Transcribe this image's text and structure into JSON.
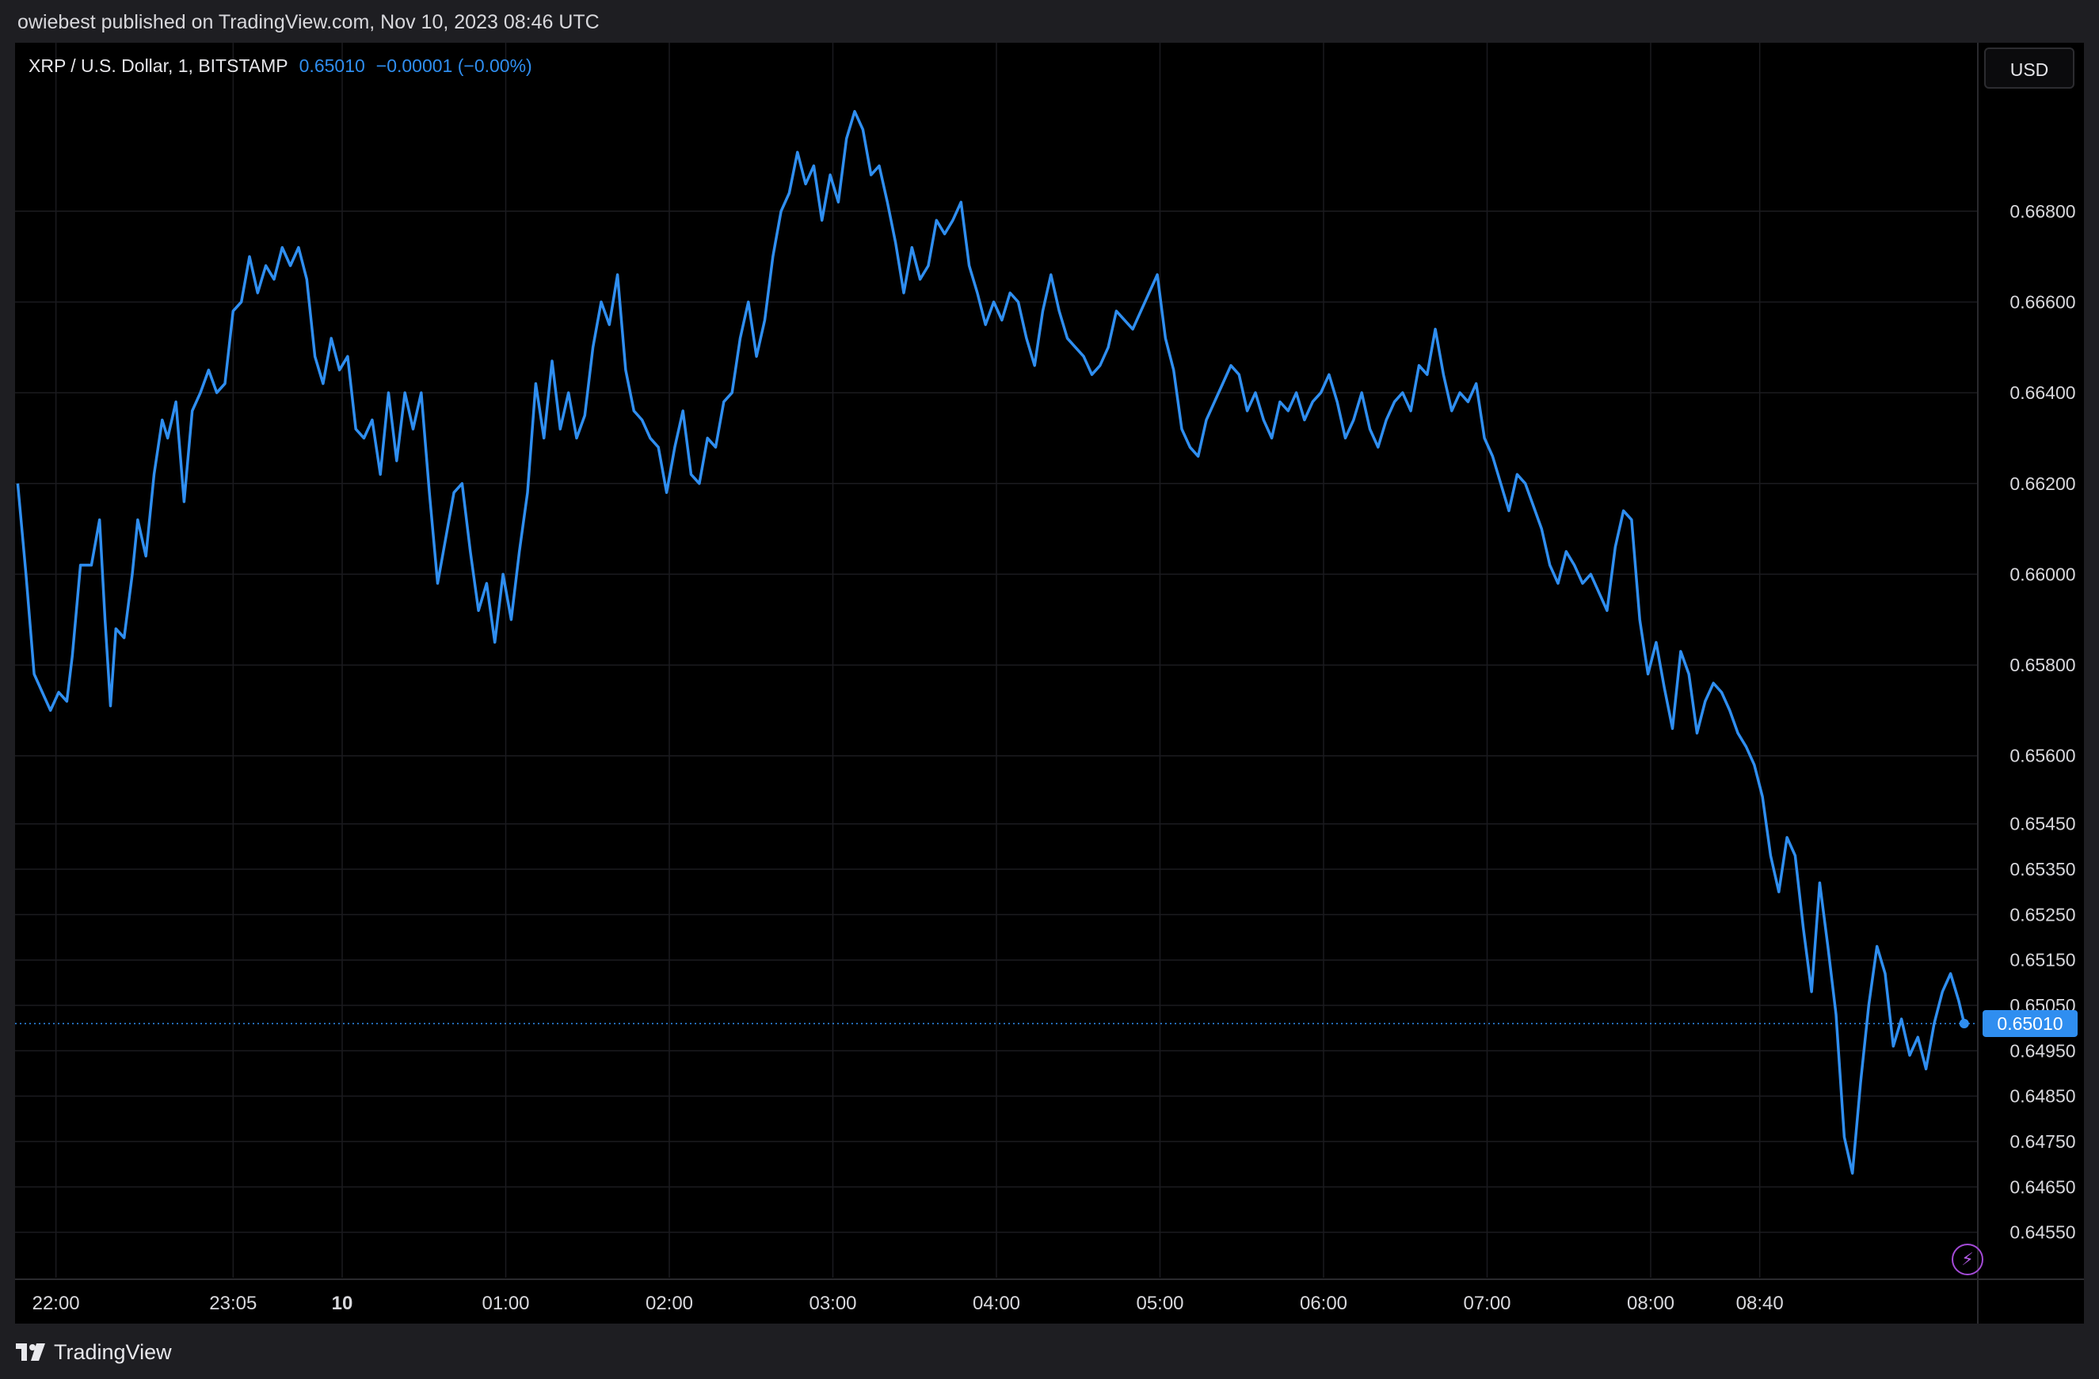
{
  "header": {
    "published_text": "owiebest published on TradingView.com, Nov 10, 2023 08:46 UTC"
  },
  "legend": {
    "symbol": "XRP / U.S. Dollar, 1, BITSTAMP",
    "price": "0.65010",
    "change": "−0.00001 (−0.00%)"
  },
  "currency_button": {
    "label": "USD"
  },
  "footer": {
    "brand": "TradingView"
  },
  "colors": {
    "line": "#2f8ef0",
    "background": "#000000",
    "grid": "#1b1b1f",
    "last_price_badge": "#2f8ef0"
  },
  "icons": {
    "lightning": "lightning-icon",
    "logo": "tradingview-logo-icon"
  },
  "chart_data": {
    "type": "line",
    "title": "XRP / U.S. Dollar, 1, BITSTAMP",
    "xlabel": "",
    "ylabel": "",
    "x_ticks": [
      {
        "label": "22:00",
        "t": -645
      },
      {
        "label": "23:05",
        "t": -580
      },
      {
        "label": "10",
        "t": -540,
        "bold": true
      },
      {
        "label": "01:00",
        "t": -480
      },
      {
        "label": "02:00",
        "t": -420
      },
      {
        "label": "03:00",
        "t": -360
      },
      {
        "label": "04:00",
        "t": -300
      },
      {
        "label": "05:00",
        "t": -240
      },
      {
        "label": "06:00",
        "t": -180
      },
      {
        "label": "07:00",
        "t": -120
      },
      {
        "label": "08:00",
        "t": -60
      },
      {
        "label": "08:40",
        "t": -20
      }
    ],
    "y_ticks": [
      {
        "label": "0.66800",
        "v": 0.668
      },
      {
        "label": "0.66600",
        "v": 0.666
      },
      {
        "label": "0.66400",
        "v": 0.664
      },
      {
        "label": "0.66200",
        "v": 0.662
      },
      {
        "label": "0.66000",
        "v": 0.66
      },
      {
        "label": "0.65800",
        "v": 0.658
      },
      {
        "label": "0.65600",
        "v": 0.656
      },
      {
        "label": "0.65450",
        "v": 0.6545
      },
      {
        "label": "0.65350",
        "v": 0.6535
      },
      {
        "label": "0.65250",
        "v": 0.6525
      },
      {
        "label": "0.65150",
        "v": 0.6515
      },
      {
        "label": "0.65050",
        "v": 0.6505
      },
      {
        "label": "0.64950",
        "v": 0.6495
      },
      {
        "label": "0.64850",
        "v": 0.6485
      },
      {
        "label": "0.64750",
        "v": 0.6475
      },
      {
        "label": "0.64650",
        "v": 0.6465
      },
      {
        "label": "0.64550",
        "v": 0.6455
      }
    ],
    "last_price": 0.6501,
    "last_price_label": "0.65010",
    "series": [
      {
        "color": "#2f8ef0",
        "points": [
          [
            -659,
            0.662
          ],
          [
            -656,
            0.66
          ],
          [
            -653,
            0.6578
          ],
          [
            -650,
            0.6574
          ],
          [
            -647,
            0.657
          ],
          [
            -644,
            0.6574
          ],
          [
            -641,
            0.6572
          ],
          [
            -639,
            0.6582
          ],
          [
            -636,
            0.6602
          ],
          [
            -632,
            0.6602
          ],
          [
            -629,
            0.6612
          ],
          [
            -627,
            0.659
          ],
          [
            -625,
            0.6571
          ],
          [
            -623,
            0.6588
          ],
          [
            -620,
            0.6586
          ],
          [
            -617,
            0.66
          ],
          [
            -615,
            0.6612
          ],
          [
            -612,
            0.6604
          ],
          [
            -609,
            0.6622
          ],
          [
            -606,
            0.6634
          ],
          [
            -604,
            0.663
          ],
          [
            -601,
            0.6638
          ],
          [
            -598,
            0.6616
          ],
          [
            -595,
            0.6636
          ],
          [
            -592,
            0.664
          ],
          [
            -589,
            0.6645
          ],
          [
            -586,
            0.664
          ],
          [
            -583,
            0.6642
          ],
          [
            -580,
            0.6658
          ],
          [
            -577,
            0.666
          ],
          [
            -574,
            0.667
          ],
          [
            -571,
            0.6662
          ],
          [
            -568,
            0.6668
          ],
          [
            -565,
            0.6665
          ],
          [
            -562,
            0.6672
          ],
          [
            -559,
            0.6668
          ],
          [
            -556,
            0.6672
          ],
          [
            -553,
            0.6665
          ],
          [
            -550,
            0.6648
          ],
          [
            -547,
            0.6642
          ],
          [
            -544,
            0.6652
          ],
          [
            -541,
            0.6645
          ],
          [
            -538,
            0.6648
          ],
          [
            -535,
            0.6632
          ],
          [
            -532,
            0.663
          ],
          [
            -529,
            0.6634
          ],
          [
            -526,
            0.6622
          ],
          [
            -523,
            0.664
          ],
          [
            -520,
            0.6625
          ],
          [
            -517,
            0.664
          ],
          [
            -514,
            0.6632
          ],
          [
            -511,
            0.664
          ],
          [
            -508,
            0.6618
          ],
          [
            -505,
            0.6598
          ],
          [
            -502,
            0.6608
          ],
          [
            -499,
            0.6618
          ],
          [
            -496,
            0.662
          ],
          [
            -493,
            0.6605
          ],
          [
            -490,
            0.6592
          ],
          [
            -487,
            0.6598
          ],
          [
            -484,
            0.6585
          ],
          [
            -481,
            0.66
          ],
          [
            -478,
            0.659
          ],
          [
            -475,
            0.6605
          ],
          [
            -472,
            0.6618
          ],
          [
            -469,
            0.6642
          ],
          [
            -466,
            0.663
          ],
          [
            -463,
            0.6647
          ],
          [
            -460,
            0.6632
          ],
          [
            -457,
            0.664
          ],
          [
            -454,
            0.663
          ],
          [
            -451,
            0.6635
          ],
          [
            -448,
            0.665
          ],
          [
            -445,
            0.666
          ],
          [
            -442,
            0.6655
          ],
          [
            -439,
            0.6666
          ],
          [
            -436,
            0.6645
          ],
          [
            -433,
            0.6636
          ],
          [
            -430,
            0.6634
          ],
          [
            -427,
            0.663
          ],
          [
            -424,
            0.6628
          ],
          [
            -421,
            0.6618
          ],
          [
            -418,
            0.6628
          ],
          [
            -415,
            0.6636
          ],
          [
            -412,
            0.6622
          ],
          [
            -409,
            0.662
          ],
          [
            -406,
            0.663
          ],
          [
            -403,
            0.6628
          ],
          [
            -400,
            0.6638
          ],
          [
            -397,
            0.664
          ],
          [
            -394,
            0.6652
          ],
          [
            -391,
            0.666
          ],
          [
            -388,
            0.6648
          ],
          [
            -385,
            0.6656
          ],
          [
            -382,
            0.667
          ],
          [
            -379,
            0.668
          ],
          [
            -376,
            0.6684
          ],
          [
            -373,
            0.6693
          ],
          [
            -370,
            0.6686
          ],
          [
            -367,
            0.669
          ],
          [
            -364,
            0.6678
          ],
          [
            -361,
            0.6688
          ],
          [
            -358,
            0.6682
          ],
          [
            -355,
            0.6696
          ],
          [
            -352,
            0.6702
          ],
          [
            -349,
            0.6698
          ],
          [
            -346,
            0.6688
          ],
          [
            -343,
            0.669
          ],
          [
            -340,
            0.6682
          ],
          [
            -337,
            0.6673
          ],
          [
            -334,
            0.6662
          ],
          [
            -331,
            0.6672
          ],
          [
            -328,
            0.6665
          ],
          [
            -325,
            0.6668
          ],
          [
            -322,
            0.6678
          ],
          [
            -319,
            0.6675
          ],
          [
            -316,
            0.6678
          ],
          [
            -313,
            0.6682
          ],
          [
            -310,
            0.6668
          ],
          [
            -307,
            0.6662
          ],
          [
            -304,
            0.6655
          ],
          [
            -301,
            0.666
          ],
          [
            -298,
            0.6656
          ],
          [
            -295,
            0.6662
          ],
          [
            -292,
            0.666
          ],
          [
            -289,
            0.6652
          ],
          [
            -286,
            0.6646
          ],
          [
            -283,
            0.6658
          ],
          [
            -280,
            0.6666
          ],
          [
            -277,
            0.6658
          ],
          [
            -274,
            0.6652
          ],
          [
            -271,
            0.665
          ],
          [
            -268,
            0.6648
          ],
          [
            -265,
            0.6644
          ],
          [
            -262,
            0.6646
          ],
          [
            -259,
            0.665
          ],
          [
            -256,
            0.6658
          ],
          [
            -253,
            0.6656
          ],
          [
            -250,
            0.6654
          ],
          [
            -247,
            0.6658
          ],
          [
            -244,
            0.6662
          ],
          [
            -241,
            0.6666
          ],
          [
            -238,
            0.6652
          ],
          [
            -235,
            0.6645
          ],
          [
            -232,
            0.6632
          ],
          [
            -229,
            0.6628
          ],
          [
            -226,
            0.6626
          ],
          [
            -223,
            0.6634
          ],
          [
            -220,
            0.6638
          ],
          [
            -217,
            0.6642
          ],
          [
            -214,
            0.6646
          ],
          [
            -211,
            0.6644
          ],
          [
            -208,
            0.6636
          ],
          [
            -205,
            0.664
          ],
          [
            -202,
            0.6634
          ],
          [
            -199,
            0.663
          ],
          [
            -196,
            0.6638
          ],
          [
            -193,
            0.6636
          ],
          [
            -190,
            0.664
          ],
          [
            -187,
            0.6634
          ],
          [
            -184,
            0.6638
          ],
          [
            -181,
            0.664
          ],
          [
            -178,
            0.6644
          ],
          [
            -175,
            0.6638
          ],
          [
            -172,
            0.663
          ],
          [
            -169,
            0.6634
          ],
          [
            -166,
            0.664
          ],
          [
            -163,
            0.6632
          ],
          [
            -160,
            0.6628
          ],
          [
            -157,
            0.6634
          ],
          [
            -154,
            0.6638
          ],
          [
            -151,
            0.664
          ],
          [
            -148,
            0.6636
          ],
          [
            -145,
            0.6646
          ],
          [
            -142,
            0.6644
          ],
          [
            -139,
            0.6654
          ],
          [
            -136,
            0.6644
          ],
          [
            -133,
            0.6636
          ],
          [
            -130,
            0.664
          ],
          [
            -127,
            0.6638
          ],
          [
            -124,
            0.6642
          ],
          [
            -121,
            0.663
          ],
          [
            -118,
            0.6626
          ],
          [
            -115,
            0.662
          ],
          [
            -112,
            0.6614
          ],
          [
            -109,
            0.6622
          ],
          [
            -106,
            0.662
          ],
          [
            -103,
            0.6615
          ],
          [
            -100,
            0.661
          ],
          [
            -97,
            0.6602
          ],
          [
            -94,
            0.6598
          ],
          [
            -91,
            0.6605
          ],
          [
            -88,
            0.6602
          ],
          [
            -85,
            0.6598
          ],
          [
            -82,
            0.66
          ],
          [
            -79,
            0.6596
          ],
          [
            -76,
            0.6592
          ],
          [
            -73,
            0.6606
          ],
          [
            -70,
            0.6614
          ],
          [
            -67,
            0.6612
          ],
          [
            -64,
            0.659
          ],
          [
            -61,
            0.6578
          ],
          [
            -58,
            0.6585
          ],
          [
            -55,
            0.6575
          ],
          [
            -52,
            0.6566
          ],
          [
            -49,
            0.6583
          ],
          [
            -46,
            0.6578
          ],
          [
            -43,
            0.6565
          ],
          [
            -40,
            0.6572
          ],
          [
            -37,
            0.6576
          ],
          [
            -34,
            0.6574
          ],
          [
            -31,
            0.657
          ],
          [
            -28,
            0.6565
          ],
          [
            -25,
            0.6562
          ],
          [
            -22,
            0.6558
          ],
          [
            -19,
            0.6551
          ],
          [
            -16,
            0.6538
          ],
          [
            -13,
            0.653
          ],
          [
            -10,
            0.6542
          ],
          [
            -7,
            0.6538
          ],
          [
            -4,
            0.6522
          ],
          [
            -1,
            0.6508
          ],
          [
            2,
            0.6532
          ],
          [
            5,
            0.6518
          ],
          [
            8,
            0.6503
          ],
          [
            11,
            0.6476
          ],
          [
            14,
            0.6468
          ],
          [
            17,
            0.6488
          ],
          [
            20,
            0.6505
          ],
          [
            23,
            0.6518
          ],
          [
            26,
            0.6512
          ],
          [
            29,
            0.6496
          ],
          [
            32,
            0.6502
          ],
          [
            35,
            0.6494
          ],
          [
            38,
            0.6498
          ],
          [
            41,
            0.6491
          ],
          [
            44,
            0.6501
          ],
          [
            47,
            0.6508
          ],
          [
            50,
            0.6512
          ],
          [
            53,
            0.6506
          ],
          [
            55,
            0.6501
          ]
        ]
      }
    ],
    "x_range": [
      -660,
      60
    ],
    "y_range": [
      0.6445,
      0.6707
    ],
    "grid": true
  }
}
